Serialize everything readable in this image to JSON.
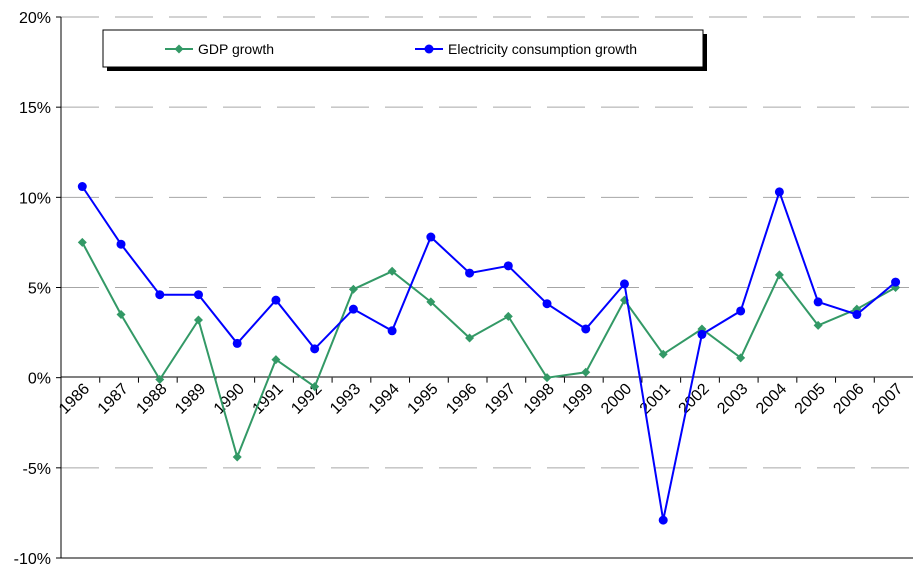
{
  "chart_data": {
    "type": "line",
    "title": "",
    "xlabel": "",
    "ylabel": "",
    "x": [
      "1986",
      "1987",
      "1988",
      "1989",
      "1990",
      "1991",
      "1992",
      "1993",
      "1994",
      "1995",
      "1996",
      "1997",
      "1998",
      "1999",
      "2000",
      "2001",
      "2002",
      "2003",
      "2004",
      "2005",
      "2006",
      "2007"
    ],
    "ylim": [
      -10,
      20
    ],
    "yticks": [
      -10,
      -5,
      0,
      5,
      10,
      15,
      20
    ],
    "ytick_labels": [
      "-10%",
      "-5%",
      "0%",
      "5%",
      "10%",
      "15%",
      "20%"
    ],
    "grid": "horizontal dashed",
    "legend_position": "top-left",
    "series": [
      {
        "name": "GDP growth",
        "color": "#339966",
        "marker": "diamond",
        "values": [
          7.5,
          3.5,
          -0.1,
          3.2,
          -4.4,
          1.0,
          -0.5,
          4.9,
          5.9,
          4.2,
          2.2,
          3.4,
          0.0,
          0.3,
          4.3,
          1.3,
          2.7,
          1.1,
          5.7,
          2.9,
          3.8,
          5.0
        ]
      },
      {
        "name": "Electricity consumption growth",
        "color": "#0000ff",
        "marker": "circle",
        "values": [
          10.6,
          7.4,
          4.6,
          4.6,
          1.9,
          4.3,
          1.6,
          3.8,
          2.6,
          7.8,
          5.8,
          6.2,
          4.1,
          2.7,
          5.2,
          -7.9,
          2.4,
          3.7,
          10.3,
          4.2,
          3.5,
          5.3
        ]
      }
    ]
  }
}
